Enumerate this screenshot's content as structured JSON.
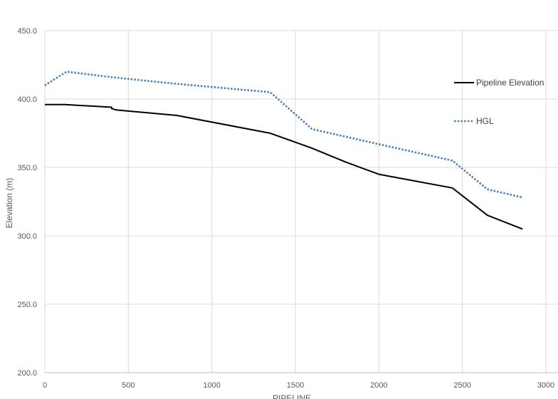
{
  "chart_data": {
    "type": "line",
    "title": "",
    "xlabel": "PIPELINE",
    "ylabel": "Elevation (m)",
    "xlim": [
      0,
      3000
    ],
    "ylim": [
      200,
      450
    ],
    "x_ticks": [
      0,
      500,
      1000,
      1500,
      2000,
      2500,
      3000
    ],
    "y_ticks": [
      200,
      250,
      300,
      350,
      400,
      450
    ],
    "y_tick_labels": [
      "200.0",
      "250.0",
      "300.0",
      "350.0",
      "400.0",
      "450.0"
    ],
    "grid": true,
    "legend_position": "right",
    "series": [
      {
        "name": "Pipeline Elevation",
        "color": "#000000",
        "style": "solid",
        "points": [
          [
            0,
            396
          ],
          [
            120,
            396
          ],
          [
            400,
            394
          ],
          [
            400,
            393
          ],
          [
            430,
            392
          ],
          [
            790,
            388
          ],
          [
            1350,
            375
          ],
          [
            1600,
            364
          ],
          [
            1800,
            354
          ],
          [
            2000,
            345
          ],
          [
            2440,
            335
          ],
          [
            2650,
            315
          ],
          [
            2860,
            305
          ]
        ]
      },
      {
        "name": "HGL",
        "color": "#4a7ebb",
        "style": "dotted",
        "points": [
          [
            0,
            410
          ],
          [
            130,
            420
          ],
          [
            400,
            416
          ],
          [
            800,
            411
          ],
          [
            1350,
            405
          ],
          [
            1600,
            378
          ],
          [
            2000,
            367
          ],
          [
            2440,
            355
          ],
          [
            2650,
            334
          ],
          [
            2860,
            328
          ]
        ]
      }
    ]
  }
}
